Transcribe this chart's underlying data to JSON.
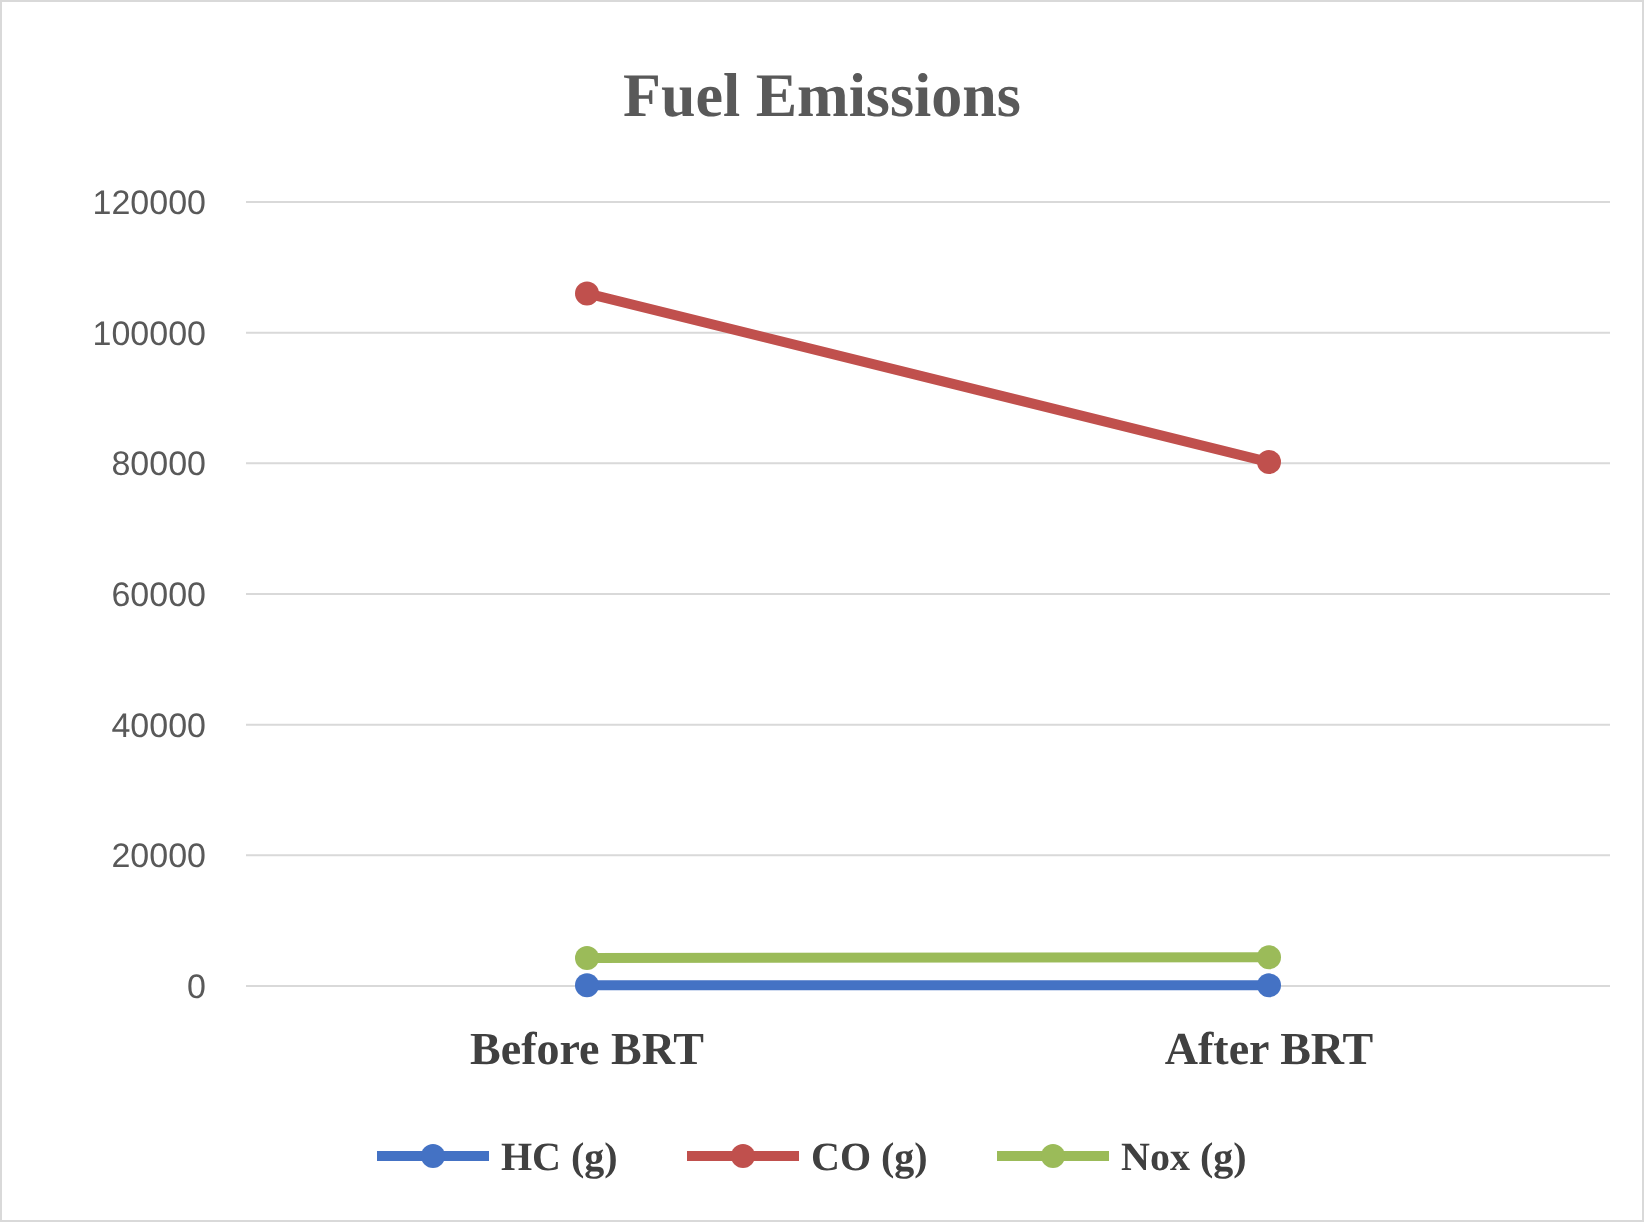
{
  "chart_data": {
    "type": "line",
    "title": "Fuel Emissions",
    "categories": [
      "Before BRT",
      "After BRT"
    ],
    "series": [
      {
        "name": "HC (g)",
        "color": "#4472c4",
        "values": [
          100,
          100
        ]
      },
      {
        "name": "CO (g)",
        "color": "#c0504d",
        "values": [
          106000,
          80200
        ]
      },
      {
        "name": "Nox (g)",
        "color": "#9bbb59",
        "values": [
          4300,
          4400
        ]
      }
    ],
    "ylim": [
      0,
      120000
    ],
    "yticks": [
      0,
      20000,
      40000,
      60000,
      80000,
      100000,
      120000
    ],
    "grid": "y",
    "legend": "bottom",
    "marker": "circle"
  }
}
